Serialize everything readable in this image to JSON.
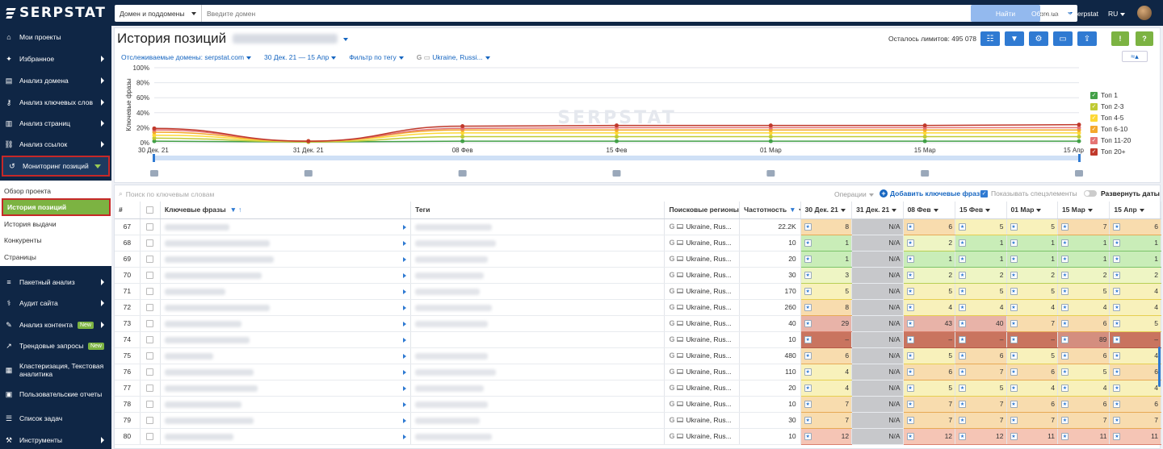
{
  "logo": "SERPSTAT",
  "sidebar": {
    "items": [
      {
        "label": "Мои проекты",
        "icon": "home-icon",
        "arrow": false
      },
      {
        "label": "Избранное",
        "icon": "pin-icon",
        "arrow": true
      },
      {
        "label": "Анализ домена",
        "icon": "domain-analysis-icon",
        "arrow": true
      },
      {
        "label": "Анализ ключевых слов",
        "icon": "key-icon",
        "arrow": true
      },
      {
        "label": "Анализ страниц",
        "icon": "bar-chart-icon",
        "arrow": true
      },
      {
        "label": "Анализ ссылок",
        "icon": "link-icon",
        "arrow": true
      },
      {
        "label": "Мониторинг позиций",
        "icon": "history-icon",
        "arrow": true
      }
    ],
    "submenu": [
      "Обзор проекта",
      "История позиций",
      "История выдачи",
      "Конкуренты",
      "Страницы"
    ],
    "items2": [
      {
        "label": "Пакетный анализ",
        "icon": "database-icon",
        "arrow": true
      },
      {
        "label": "Аудит сайта",
        "icon": "audit-icon",
        "arrow": true
      },
      {
        "label": "Анализ контента",
        "icon": "pen-icon",
        "arrow": true,
        "badge": "New"
      },
      {
        "label": "Трендовые запросы",
        "icon": "trend-icon",
        "arrow": false,
        "badge": "New"
      },
      {
        "label": "Кластеризация, Текстовая аналитика",
        "icon": "cluster-icon",
        "arrow": false
      },
      {
        "label": "Пользовательские отчеты",
        "icon": "report-icon",
        "arrow": false
      },
      {
        "label": "Список задач",
        "icon": "list-icon",
        "arrow": false
      },
      {
        "label": "Инструменты",
        "icon": "tools-icon",
        "arrow": true
      }
    ]
  },
  "topbar": {
    "domain_select": "Домен и поддомены",
    "search_placeholder": "Введите домен",
    "engine": "google.com.ua",
    "find": "Найти",
    "updates": "Обновления Serpstat",
    "lang": "RU"
  },
  "page": {
    "title": "История позиций",
    "limits": "Осталось лимитов: 495 078",
    "filters": {
      "domains": "Отслеживаемые домены: serpstat.com",
      "dates": "30 Дек. 21 — 15 Апр",
      "tag": "Фильтр по тегу",
      "region": "Ukraine, Russi..."
    }
  },
  "chart_data": {
    "type": "line",
    "ylabel": "Ключевые фразы",
    "yticks": [
      "100%",
      "80%",
      "60%",
      "40%",
      "20%",
      "0%"
    ],
    "ylim": [
      0,
      100
    ],
    "watermark": "SERPSTAT",
    "x": [
      "30 Дек. 21",
      "31 Дек. 21",
      "08 Фев",
      "15 Фев",
      "01 Мар",
      "15 Мар",
      "15 Апр"
    ],
    "series": [
      {
        "name": "Топ 1",
        "color": "#43a047",
        "values": [
          2,
          1,
          2,
          2,
          2,
          2,
          2
        ]
      },
      {
        "name": "Топ 2-3",
        "color": "#c0ca33",
        "values": [
          6,
          1,
          8,
          8,
          8,
          8,
          8
        ]
      },
      {
        "name": "Топ 4-5",
        "color": "#fdd835",
        "values": [
          10,
          2,
          13,
          13,
          13,
          13,
          13
        ]
      },
      {
        "name": "Топ 6-10",
        "color": "#f4a82c",
        "values": [
          14,
          2,
          17,
          17,
          17,
          17,
          17
        ]
      },
      {
        "name": "Топ 11-20",
        "color": "#e57373",
        "values": [
          17,
          2,
          19,
          20,
          20,
          20,
          20
        ]
      },
      {
        "name": "Топ 20+",
        "color": "#c0392b",
        "values": [
          19,
          2,
          22,
          23,
          23,
          23,
          24
        ]
      }
    ],
    "legend": "right"
  },
  "table": {
    "search_placeholder": "Поиск по ключевым словам",
    "operations": "Операции",
    "add_keywords": "Добавить ключевые фразы",
    "show_special": "Показывать спецэлементы",
    "expand_dates": "Развернуть даты",
    "headers": {
      "num": "#",
      "keywords": "Ключевые фразы",
      "tags": "Теги",
      "regions": "Поисковые регионы",
      "frequency": "Частотность"
    },
    "dates": [
      "30 Дек. 21",
      "31 Дек. 21",
      "08 Фев",
      "15 Фев",
      "01 Мар",
      "15 Мар",
      "15 Апр"
    ],
    "rows": [
      {
        "n": "67",
        "region": "Ukraine, Rus...",
        "freq": "22.2K",
        "pos": [
          "8",
          "N/A",
          "6",
          "5",
          "5",
          "7",
          "6"
        ]
      },
      {
        "n": "68",
        "region": "Ukraine, Rus...",
        "freq": "10",
        "pos": [
          "1",
          "N/A",
          "2",
          "1",
          "1",
          "1",
          "1"
        ]
      },
      {
        "n": "69",
        "region": "Ukraine, Rus...",
        "freq": "20",
        "pos": [
          "1",
          "N/A",
          "1",
          "1",
          "1",
          "1",
          "1"
        ]
      },
      {
        "n": "70",
        "region": "Ukraine, Rus...",
        "freq": "30",
        "pos": [
          "3",
          "N/A",
          "2",
          "2",
          "2",
          "2",
          "2"
        ]
      },
      {
        "n": "71",
        "region": "Ukraine, Rus...",
        "freq": "170",
        "pos": [
          "5",
          "N/A",
          "5",
          "5",
          "5",
          "5",
          "4"
        ]
      },
      {
        "n": "72",
        "region": "Ukraine, Rus...",
        "freq": "260",
        "pos": [
          "8",
          "N/A",
          "4",
          "4",
          "4",
          "4",
          "4"
        ]
      },
      {
        "n": "73",
        "region": "Ukraine, Rus...",
        "freq": "40",
        "pos": [
          "29",
          "N/A",
          "43",
          "40",
          "7",
          "6",
          "5"
        ]
      },
      {
        "n": "74",
        "region": "Ukraine, Rus...",
        "freq": "10",
        "pos": [
          "–",
          "N/A",
          "–",
          "–",
          "–",
          "89",
          "–"
        ]
      },
      {
        "n": "75",
        "region": "Ukraine, Rus...",
        "freq": "480",
        "pos": [
          "6",
          "N/A",
          "5",
          "6",
          "5",
          "6",
          "4"
        ]
      },
      {
        "n": "76",
        "region": "Ukraine, Rus...",
        "freq": "110",
        "pos": [
          "4",
          "N/A",
          "6",
          "7",
          "6",
          "5",
          "6"
        ]
      },
      {
        "n": "77",
        "region": "Ukraine, Rus...",
        "freq": "20",
        "pos": [
          "4",
          "N/A",
          "5",
          "5",
          "4",
          "4",
          "4"
        ]
      },
      {
        "n": "78",
        "region": "Ukraine, Rus...",
        "freq": "10",
        "pos": [
          "7",
          "N/A",
          "7",
          "7",
          "6",
          "6",
          "6"
        ]
      },
      {
        "n": "79",
        "region": "Ukraine, Rus...",
        "freq": "30",
        "pos": [
          "7",
          "N/A",
          "7",
          "7",
          "7",
          "7",
          "7"
        ]
      },
      {
        "n": "80",
        "region": "Ukraine, Rus...",
        "freq": "10",
        "pos": [
          "12",
          "N/A",
          "12",
          "12",
          "11",
          "11",
          "11"
        ]
      }
    ]
  },
  "colors": {
    "sidebar": "#0f2645",
    "accent": "#2f7ad2",
    "green": "#7cb342"
  }
}
